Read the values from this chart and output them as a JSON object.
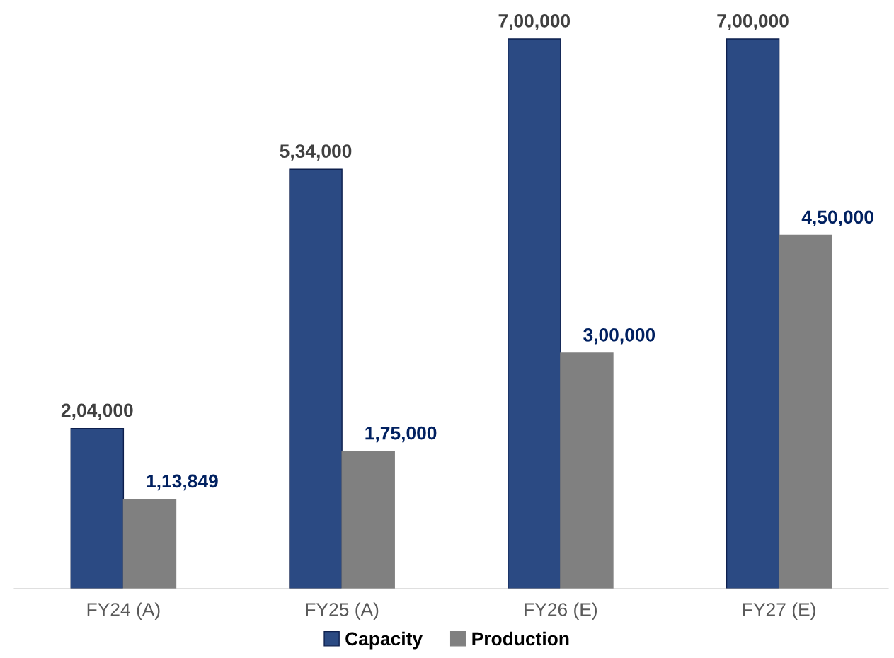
{
  "chart_data": {
    "type": "bar",
    "categories": [
      "FY24 (A)",
      "FY25 (A)",
      "FY26 (E)",
      "FY27 (E)"
    ],
    "series": [
      {
        "name": "Capacity",
        "color": "#2b4a83",
        "values": [
          204000,
          534000,
          700000,
          700000
        ],
        "value_labels": [
          "2,04,000",
          "5,34,000",
          "7,00,000",
          "7,00,000"
        ]
      },
      {
        "name": "Production",
        "color": "#808080",
        "values": [
          113849,
          175000,
          300000,
          450000
        ],
        "value_labels": [
          "1,13,849",
          "1,75,000",
          "3,00,000",
          "4,50,000"
        ]
      }
    ],
    "legend": "bottom"
  }
}
